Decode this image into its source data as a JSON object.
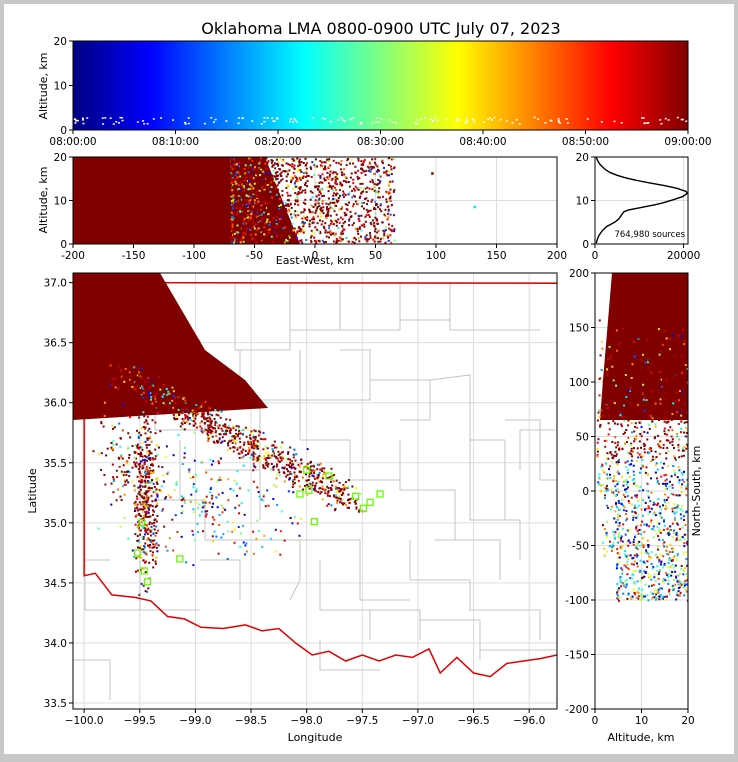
{
  "title": "Oklahoma LMA 0800-0900 UTC July 07, 2023",
  "colors": {
    "frame": "#c8c8c8",
    "background": "#ffffff",
    "grid": "#dddddd",
    "county_lines": "#c4c4c4",
    "state_line": "#e00000",
    "station_marker": "#66ff00",
    "dense_core": "#800000"
  },
  "colormap": "jet",
  "chart_data": [
    {
      "id": "time-altitude",
      "type": "scatter",
      "xlabel": "",
      "ylabel": "Altitude, km",
      "ylim": [
        0,
        20
      ],
      "x_ticks": [
        "08:00:00",
        "08:10:00",
        "08:20:00",
        "08:30:00",
        "08:40:00",
        "08:50:00",
        "09:00:00"
      ],
      "y_ticks": [
        0,
        10,
        20
      ],
      "color_by": "time",
      "grid": true
    },
    {
      "id": "ew-altitude",
      "type": "scatter",
      "xlabel": "East-West, km",
      "ylabel": "Altitude, km",
      "xlim": [
        -200,
        200
      ],
      "ylim": [
        0,
        20
      ],
      "x_ticks": [
        -200,
        -150,
        -100,
        -50,
        0,
        50,
        100,
        150,
        200
      ],
      "y_ticks": [
        0,
        10,
        20
      ],
      "grid": true
    },
    {
      "id": "altitude-histogram",
      "type": "line",
      "xlim": [
        0,
        21000
      ],
      "ylim": [
        0,
        20
      ],
      "x_ticks": [
        0,
        20000
      ],
      "y_ticks": [
        0,
        10,
        20
      ],
      "annotation": "764,980 sources",
      "series": [
        {
          "x": [
            300,
            500,
            900,
            1600,
            2600,
            3700,
            4600,
            5400,
            5900,
            6200,
            6500,
            7500,
            9500,
            11500,
            13500,
            15500,
            17800,
            19800,
            20800,
            20600,
            18500,
            15800,
            12500,
            9500,
            7000,
            5000,
            3500,
            2500,
            1800,
            1200,
            800,
            500,
            300
          ],
          "y": [
            0.2,
            1.0,
            2.0,
            3.0,
            4.0,
            4.6,
            5.1,
            5.8,
            6.5,
            7.0,
            7.4,
            7.8,
            8.2,
            8.6,
            9.0,
            9.5,
            10.2,
            10.9,
            11.6,
            12.1,
            12.8,
            13.4,
            14.0,
            14.6,
            15.2,
            15.8,
            16.4,
            17.0,
            17.6,
            18.2,
            18.8,
            19.4,
            20.0
          ]
        }
      ]
    },
    {
      "id": "plan-view",
      "type": "scatter",
      "xlabel": "Longitude",
      "ylabel": "Latitude",
      "xlim": [
        -100.1,
        -95.75
      ],
      "ylim": [
        33.45,
        37.08
      ],
      "x_ticks": [
        "−100.0",
        "−99.5",
        "−99.0",
        "−98.5",
        "−98.0",
        "−97.5",
        "−97.0",
        "−96.5",
        "−96.0"
      ],
      "y_ticks": [
        "33.5",
        "34.0",
        "34.5",
        "35.0",
        "35.5",
        "36.0",
        "36.5",
        "37.0"
      ],
      "x_tick_values": [
        -100.0,
        -99.5,
        -99.0,
        -98.5,
        -98.0,
        -97.5,
        -97.0,
        -96.5,
        -96.0
      ],
      "y_tick_values": [
        33.5,
        34.0,
        34.5,
        35.0,
        35.5,
        36.0,
        36.5,
        37.0
      ],
      "stations": [
        [
          -99.52,
          34.75
        ],
        [
          -99.46,
          34.6
        ],
        [
          -99.43,
          34.51
        ],
        [
          -99.14,
          34.7
        ],
        [
          -99.48,
          35.0
        ],
        [
          -98.0,
          35.44
        ],
        [
          -97.98,
          35.27
        ],
        [
          -98.06,
          35.24
        ],
        [
          -97.93,
          35.01
        ],
        [
          -97.8,
          35.39
        ],
        [
          -97.56,
          35.22
        ],
        [
          -97.49,
          35.12
        ],
        [
          -97.43,
          35.17
        ],
        [
          -97.34,
          35.24
        ]
      ],
      "grid": true
    },
    {
      "id": "altitude-ns",
      "type": "scatter",
      "xlabel": "Altitude, km",
      "ylabel": "North-South, km",
      "xlim": [
        0,
        20
      ],
      "ylim": [
        -200,
        200
      ],
      "x_ticks": [
        0,
        10,
        20
      ],
      "y_ticks": [
        -200,
        -150,
        -100,
        -50,
        0,
        50,
        100,
        150,
        200
      ],
      "grid": true
    }
  ]
}
